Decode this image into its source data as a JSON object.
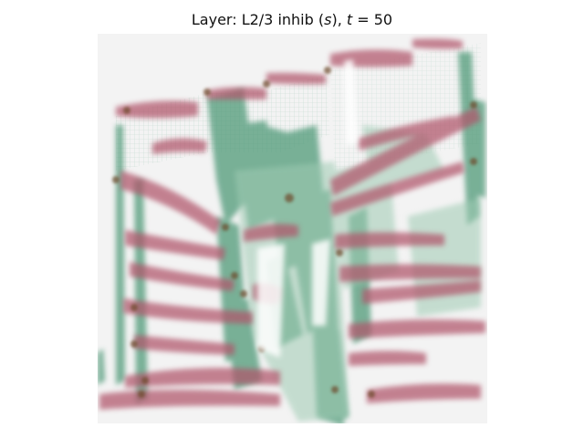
{
  "figure": {
    "title_prefix": "Layer: L2/3 inhib (",
    "title_sym": "s",
    "title_mid": "), ",
    "title_var": "t",
    "title_eq": " = 50"
  },
  "colors": {
    "background": "#f3f3f3",
    "inhibitory": "#b0546a",
    "excitatory": "#4f9a78",
    "overlap": "#6d4a2a"
  }
}
